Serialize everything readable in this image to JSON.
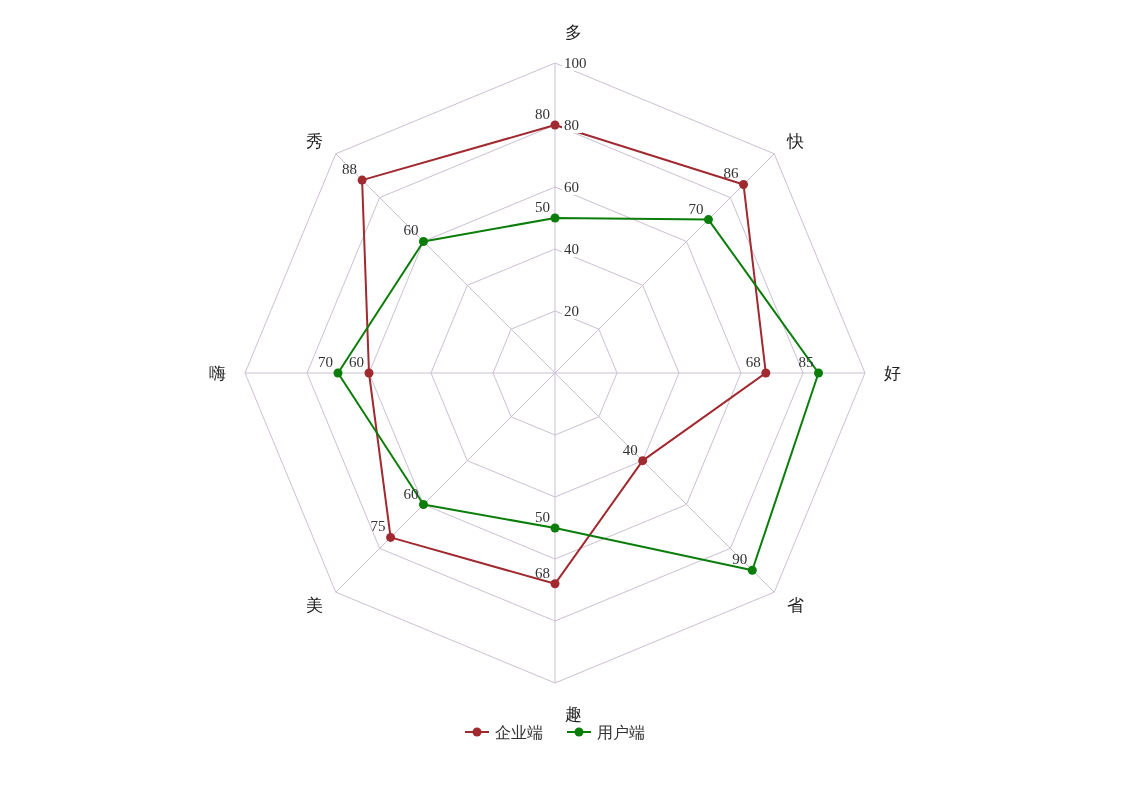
{
  "chart_data": {
    "type": "radar",
    "categories": [
      "多",
      "快",
      "好",
      "省",
      "趣",
      "美",
      "嗨",
      "秀"
    ],
    "series": [
      {
        "name": "企业端",
        "color": "#a02a30",
        "values": [
          80,
          86,
          68,
          40,
          68,
          75,
          60,
          88
        ]
      },
      {
        "name": "用户端",
        "color": "#0a7d0a",
        "values": [
          50,
          70,
          85,
          90,
          50,
          60,
          70,
          60
        ]
      }
    ],
    "ylim": [
      0,
      100
    ],
    "yticks": [
      20,
      40,
      60,
      80,
      100
    ],
    "grid": true,
    "legend": "bottom",
    "marker": "circle",
    "data_labels": true
  }
}
